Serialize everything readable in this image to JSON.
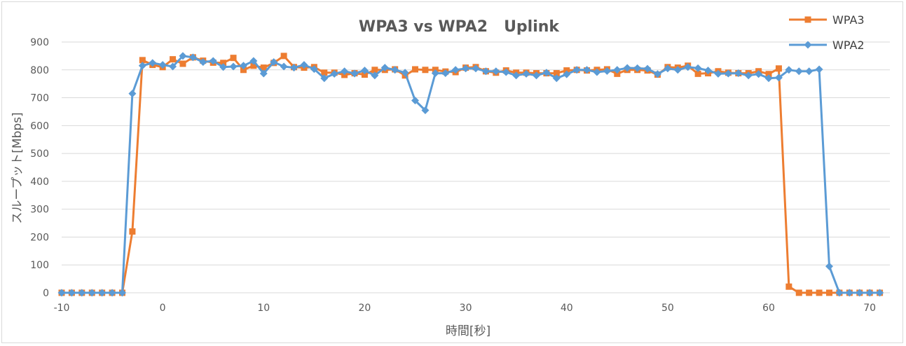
{
  "chart_data": {
    "type": "line",
    "title": "WPA3 vs WPA2   Uplink",
    "xlabel": "時間[秒]",
    "ylabel": "スループット[Mbps]",
    "xlim": [
      -10,
      72
    ],
    "ylim": [
      0,
      900
    ],
    "xticks": [
      -10,
      0,
      10,
      20,
      30,
      40,
      50,
      60,
      70
    ],
    "yticks": [
      0,
      100,
      200,
      300,
      400,
      500,
      600,
      700,
      800,
      900
    ],
    "grid": true,
    "legend_position": "top-right",
    "x": [
      -10,
      -9,
      -8,
      -7,
      -6,
      -5,
      -4,
      -3,
      -2,
      -1,
      0,
      1,
      2,
      3,
      4,
      5,
      6,
      7,
      8,
      9,
      10,
      11,
      12,
      13,
      14,
      15,
      16,
      17,
      18,
      19,
      20,
      21,
      22,
      23,
      24,
      25,
      26,
      27,
      28,
      29,
      30,
      31,
      32,
      33,
      34,
      35,
      36,
      37,
      38,
      39,
      40,
      41,
      42,
      43,
      44,
      45,
      46,
      47,
      48,
      49,
      50,
      51,
      52,
      53,
      54,
      55,
      56,
      57,
      58,
      59,
      60,
      61,
      62,
      63,
      64,
      65,
      66,
      67,
      68,
      69,
      70,
      71
    ],
    "series": [
      {
        "name": "WPA3",
        "color": "#ed7d31",
        "marker": "square",
        "values": [
          0,
          0,
          0,
          0,
          0,
          0,
          0,
          220,
          835,
          818,
          810,
          838,
          822,
          845,
          833,
          826,
          825,
          843,
          800,
          815,
          808,
          825,
          850,
          810,
          808,
          810,
          790,
          790,
          782,
          788,
          783,
          800,
          800,
          802,
          780,
          802,
          800,
          800,
          794,
          792,
          808,
          810,
          795,
          790,
          798,
          790,
          790,
          788,
          788,
          788,
          798,
          800,
          798,
          800,
          802,
          786,
          800,
          800,
          798,
          783,
          810,
          808,
          815,
          786,
          788,
          795,
          790,
          788,
          788,
          795,
          785,
          805,
          22,
          0,
          0,
          0,
          0,
          0,
          0,
          0,
          0,
          0
        ]
      },
      {
        "name": "WPA2",
        "color": "#5b9bd5",
        "marker": "diamond",
        "values": [
          0,
          0,
          0,
          0,
          0,
          0,
          0,
          715,
          815,
          825,
          818,
          812,
          850,
          845,
          828,
          832,
          810,
          812,
          815,
          832,
          787,
          828,
          812,
          808,
          818,
          803,
          770,
          786,
          795,
          787,
          798,
          780,
          808,
          800,
          790,
          690,
          655,
          788,
          788,
          800,
          805,
          805,
          795,
          795,
          792,
          780,
          786,
          780,
          790,
          770,
          784,
          800,
          800,
          792,
          796,
          800,
          807,
          806,
          804,
          785,
          805,
          800,
          810,
          806,
          798,
          786,
          787,
          788,
          780,
          785,
          770,
          772,
          800,
          795,
          795,
          802,
          95,
          0,
          0,
          0,
          0,
          0
        ]
      }
    ]
  }
}
